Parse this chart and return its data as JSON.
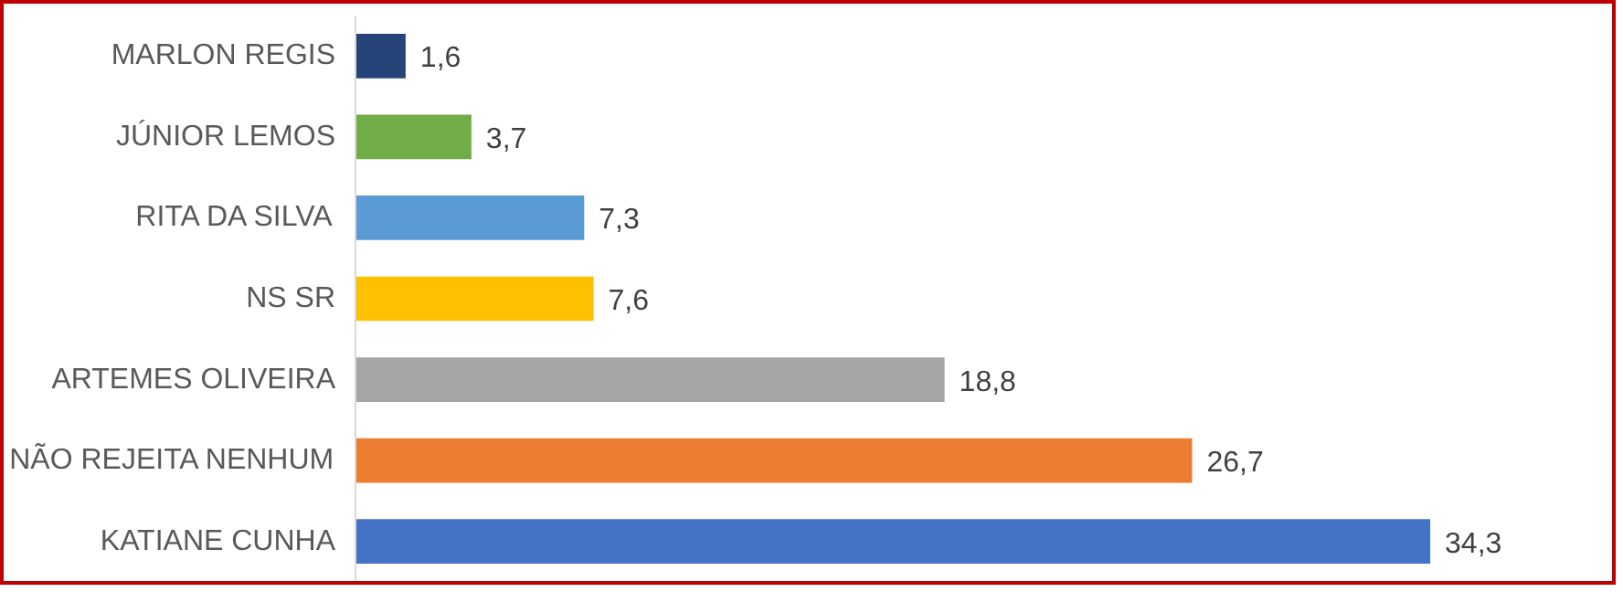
{
  "chart_data": {
    "type": "bar",
    "orientation": "horizontal",
    "categories": [
      "MARLON REGIS",
      "JÚNIOR LEMOS",
      "RITA DA SILVA",
      "NS SR",
      "ARTEMES OLIVEIRA",
      "NÃO REJEITA NENHUM",
      "KATIANE CUNHA"
    ],
    "values": [
      1.6,
      3.7,
      7.3,
      7.6,
      18.8,
      26.7,
      34.3
    ],
    "colors": [
      "#264478",
      "#70ad47",
      "#5b9bd5",
      "#ffc000",
      "#a5a5a5",
      "#ed7d31",
      "#4472c4"
    ],
    "value_labels": [
      "1,6",
      "3,7",
      "7,3",
      "7,6",
      "18,8",
      "26,7",
      "34,3"
    ],
    "grid": false
  }
}
